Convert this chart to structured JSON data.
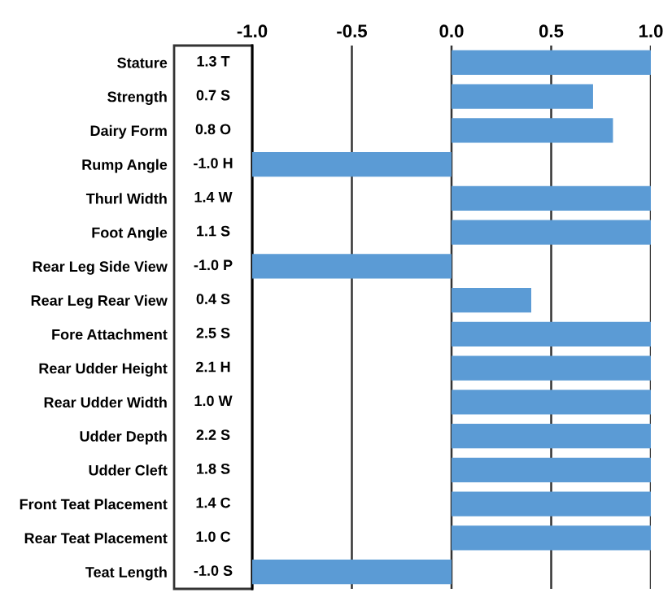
{
  "chart_data": {
    "type": "bar",
    "orientation": "horizontal",
    "categories": [
      "Stature",
      "Strength",
      "Dairy Form",
      "Rump Angle",
      "Thurl Width",
      "Foot Angle",
      "Rear Leg Side View",
      "Rear Leg Rear View",
      "Fore Attachment",
      "Rear Udder Height",
      "Rear Udder Width",
      "Udder Depth",
      "Udder Cleft",
      "Front Teat Placement",
      "Rear Teat Placement",
      "Teat Length"
    ],
    "values": [
      1.0,
      0.71,
      0.81,
      -1.0,
      1.0,
      1.0,
      -1.0,
      0.4,
      1.0,
      1.0,
      1.0,
      1.0,
      1.0,
      1.0,
      1.0,
      -1.0
    ],
    "annotations": [
      "1.3 T",
      "0.7 S",
      "0.8 O",
      "-1.0 H",
      "1.4 W",
      "1.1 S",
      "-1.0 P",
      "0.4 S",
      "2.5 S",
      "2.1 H",
      "1.0 W",
      "2.2 S",
      "1.8 S",
      "1.4 C",
      "1.0 C",
      "-1.0 S"
    ],
    "color": "#5b9bd5",
    "xlim": [
      -1.0,
      1.0
    ],
    "xticks": [
      {
        "value": -1.0,
        "label": "-1.0"
      },
      {
        "value": -0.5,
        "label": "-0.5"
      },
      {
        "value": 0.0,
        "label": "0.0"
      },
      {
        "value": 0.5,
        "label": "0.5"
      },
      {
        "value": 1.0,
        "label": "1.0"
      }
    ],
    "grid": "x"
  }
}
